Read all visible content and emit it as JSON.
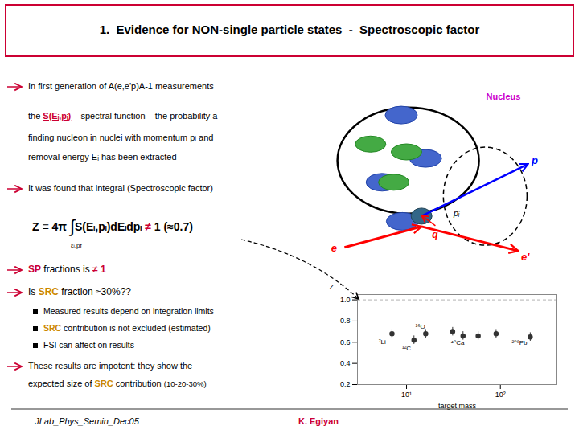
{
  "chart_data": {
    "type": "scatter",
    "title": "1.  Evidence for NON-single particle states  -  Spectroscopic factor",
    "x": [
      7,
      12,
      16,
      31,
      40,
      58,
      90,
      208
    ],
    "values": [
      0.68,
      0.62,
      0.68,
      0.7,
      0.66,
      0.66,
      0.68,
      0.65
    ],
    "errors": [
      0.04,
      0.04,
      0.04,
      0.04,
      0.04,
      0.04,
      0.04,
      0.04
    ],
    "color": "#333333",
    "marker": "circle",
    "xlabel": "target mass",
    "ylabel": "Z",
    "log": "x",
    "xlim": [
      3,
      400
    ],
    "ylim": [
      0.2,
      1.05
    ],
    "xticks": [
      {
        "value": 10,
        "label": "10¹"
      },
      {
        "value": 100,
        "label": "10²"
      }
    ],
    "yticks": [
      0.2,
      0.4,
      0.6,
      0.8,
      {
        "value": 1.0,
        "label": "1.0"
      }
    ],
    "reference_y": 1.0,
    "grid": false,
    "point_labels": [
      {
        "text": "⁷Li",
        "x": 5.5,
        "y": 0.6
      },
      {
        "text": "¹²C",
        "x": 10,
        "y": 0.54
      },
      {
        "text": "¹⁶O",
        "x": 14,
        "y": 0.74
      },
      {
        "text": "⁴⁰Ca",
        "x": 35,
        "y": 0.59
      },
      {
        "text": "²⁰⁸Pb",
        "x": 160,
        "y": 0.59
      }
    ],
    "annotations": [
      {
        "marker": "arrow",
        "color": "#cc0033",
        "runs": [
          {
            "text": "In first generation of A(e,e'p)A-1 measurements"
          }
        ]
      },
      {
        "runs": [
          {
            "text": "the "
          },
          {
            "text": "S(Eᵢ,pᵢ)",
            "color": "#cc0033"
          },
          {
            "text": " – spectral function – the probability a"
          }
        ]
      },
      {
        "runs": [
          {
            "text": "finding nucleon in nuclei with momentum pᵢ and"
          }
        ]
      },
      {
        "runs": [
          {
            "text": "removal energy Eᵢ has been extracted"
          }
        ]
      },
      {
        "marker": "arrow",
        "color": "#cc0033",
        "runs": [
          {
            "text": "It was found that integral (Spectroscopic factor)"
          }
        ]
      },
      {
        "runs": [
          {
            "text": "Z ≡ 4π "
          },
          {
            "text": "∫"
          },
          {
            "text": "S(Eᵢ,pᵢ)dEᵢdpᵢ"
          },
          {
            "text": " ≠ ",
            "color": "#cc0033"
          },
          {
            "text": "1 (≈0.7)"
          }
        ]
      },
      {
        "runs": [
          {
            "text": "εᵢ,pf"
          }
        ]
      },
      {
        "marker": "arrow",
        "color": "#cc0033",
        "runs": [
          {
            "text": "SP",
            "color": "#cc0033"
          },
          {
            "text": " fractions is "
          },
          {
            "text": "≠ 1",
            "color": "#cc0033"
          }
        ]
      },
      {
        "marker": "arrow",
        "color": "#cc0033",
        "runs": [
          {
            "text": "Is "
          },
          {
            "text": "SRC",
            "color": "#cc8800"
          },
          {
            "text": " fraction ≈30%??"
          }
        ]
      },
      {
        "marker": "square",
        "color": "#000000",
        "runs": [
          {
            "text": "Measured results depend on integration limits"
          }
        ]
      },
      {
        "marker": "square",
        "color": "#000000",
        "runs": [
          {
            "text": "SRC",
            "color": "#cc8800"
          },
          {
            "text": " contribution is not excluded (estimated)"
          }
        ]
      },
      {
        "marker": "square",
        "color": "#000000",
        "runs": [
          {
            "text": "FSI can affect on results"
          }
        ]
      },
      {
        "marker": "arrow",
        "color": "#cc0033",
        "runs": [
          {
            "text": "These results are impotent: they show the"
          }
        ]
      },
      {
        "runs": [
          {
            "text": "expected size of "
          },
          {
            "text": "SRC",
            "color": "#cc8800"
          },
          {
            "text": " contribution "
          },
          {
            "text": "(10-20-30%)"
          }
        ]
      },
      {
        "runs": [
          {
            "text": "JLab_Phys_Semin_Dec05"
          }
        ]
      },
      {
        "runs": [
          {
            "text": "K. Egiyan",
            "color": "#cc0033"
          }
        ]
      },
      {
        "runs": [
          {
            "text": "Nucleus",
            "color": "#cc00cc"
          }
        ]
      },
      {
        "runs": [
          {
            "text": "p",
            "color": "#0000ff"
          }
        ]
      },
      {
        "runs": [
          {
            "text": "e",
            "color": "#ff0000"
          }
        ]
      },
      {
        "runs": [
          {
            "text": "e'",
            "color": "#ff0000"
          }
        ]
      },
      {
        "runs": [
          {
            "text": "q",
            "color": "#ff0000"
          }
        ]
      },
      {
        "runs": [
          {
            "text": "pᵢ"
          }
        ]
      }
    ]
  }
}
